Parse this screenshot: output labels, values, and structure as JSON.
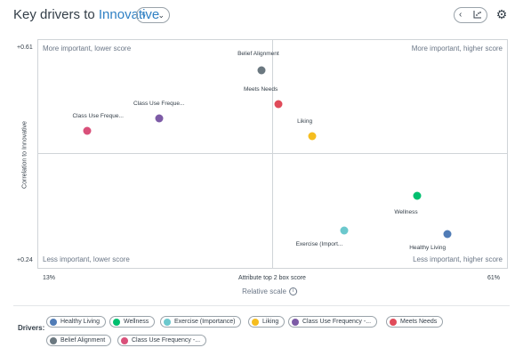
{
  "header": {
    "title_prefix": "Key drivers to",
    "title_target": "Innovative",
    "selector_icon": "bolt-icon",
    "nav_icon": "chevron-left-icon",
    "chart_icon": "chart-toggle-icon",
    "settings_icon": "gear-icon"
  },
  "quadrants": {
    "top_left": "More important, lower score",
    "top_right": "More important, higher score",
    "bottom_left": "Less important, lower score",
    "bottom_right": "Less important, higher score"
  },
  "axes": {
    "y_max_label": "+0.61",
    "y_min_label": "+0.24",
    "y_label": "Correlation to Innovative",
    "x_min_label": "13%",
    "x_max_label": "61%",
    "x_label": "Attribute top 2 box score",
    "scale_label": "Relative scale"
  },
  "chart_data": {
    "type": "scatter",
    "title": "Key drivers to Innovative",
    "xlabel": "Attribute top 2 box score",
    "ylabel": "Correlation to Innovative",
    "xlim": [
      13,
      61
    ],
    "ylim": [
      0.24,
      0.61
    ],
    "grid": false,
    "points": [
      {
        "label": "Belief Alignment",
        "x": 35.9,
        "y": 0.56,
        "color": "#6b7880"
      },
      {
        "label": "Meets Needs",
        "x": 37.6,
        "y": 0.505,
        "color": "#e04b5a"
      },
      {
        "label": "Class Use Freque...",
        "x": 25.4,
        "y": 0.482,
        "color": "#7d5ba6"
      },
      {
        "label": "Class Use Freque...",
        "x": 18.1,
        "y": 0.462,
        "color": "#d9507a"
      },
      {
        "label": "Liking",
        "x": 41.0,
        "y": 0.454,
        "color": "#f5bd1f"
      },
      {
        "label": "Wellness",
        "x": 51.7,
        "y": 0.358,
        "color": "#00bf6f"
      },
      {
        "label": "Exercise (Import...",
        "x": 44.3,
        "y": 0.302,
        "color": "#6bc8cd"
      },
      {
        "label": "Healthy Living",
        "x": 54.8,
        "y": 0.296,
        "color": "#507cb6"
      }
    ]
  },
  "drivers": {
    "label": "Drivers:",
    "items": [
      {
        "label": "Healthy Living",
        "color": "#507cb6"
      },
      {
        "label": "Wellness",
        "color": "#00bf6f"
      },
      {
        "label": "Exercise (Importance)",
        "color": "#6bc8cd"
      },
      {
        "label": "Liking",
        "color": "#f5bd1f"
      },
      {
        "label": "Class Use Frequency -...",
        "color": "#7d5ba6"
      },
      {
        "label": "Meets Needs",
        "color": "#e04b5a"
      },
      {
        "label": "Belief Alignment",
        "color": "#6b7880"
      },
      {
        "label": "Class Use Frequency -...",
        "color": "#d9507a"
      }
    ]
  }
}
